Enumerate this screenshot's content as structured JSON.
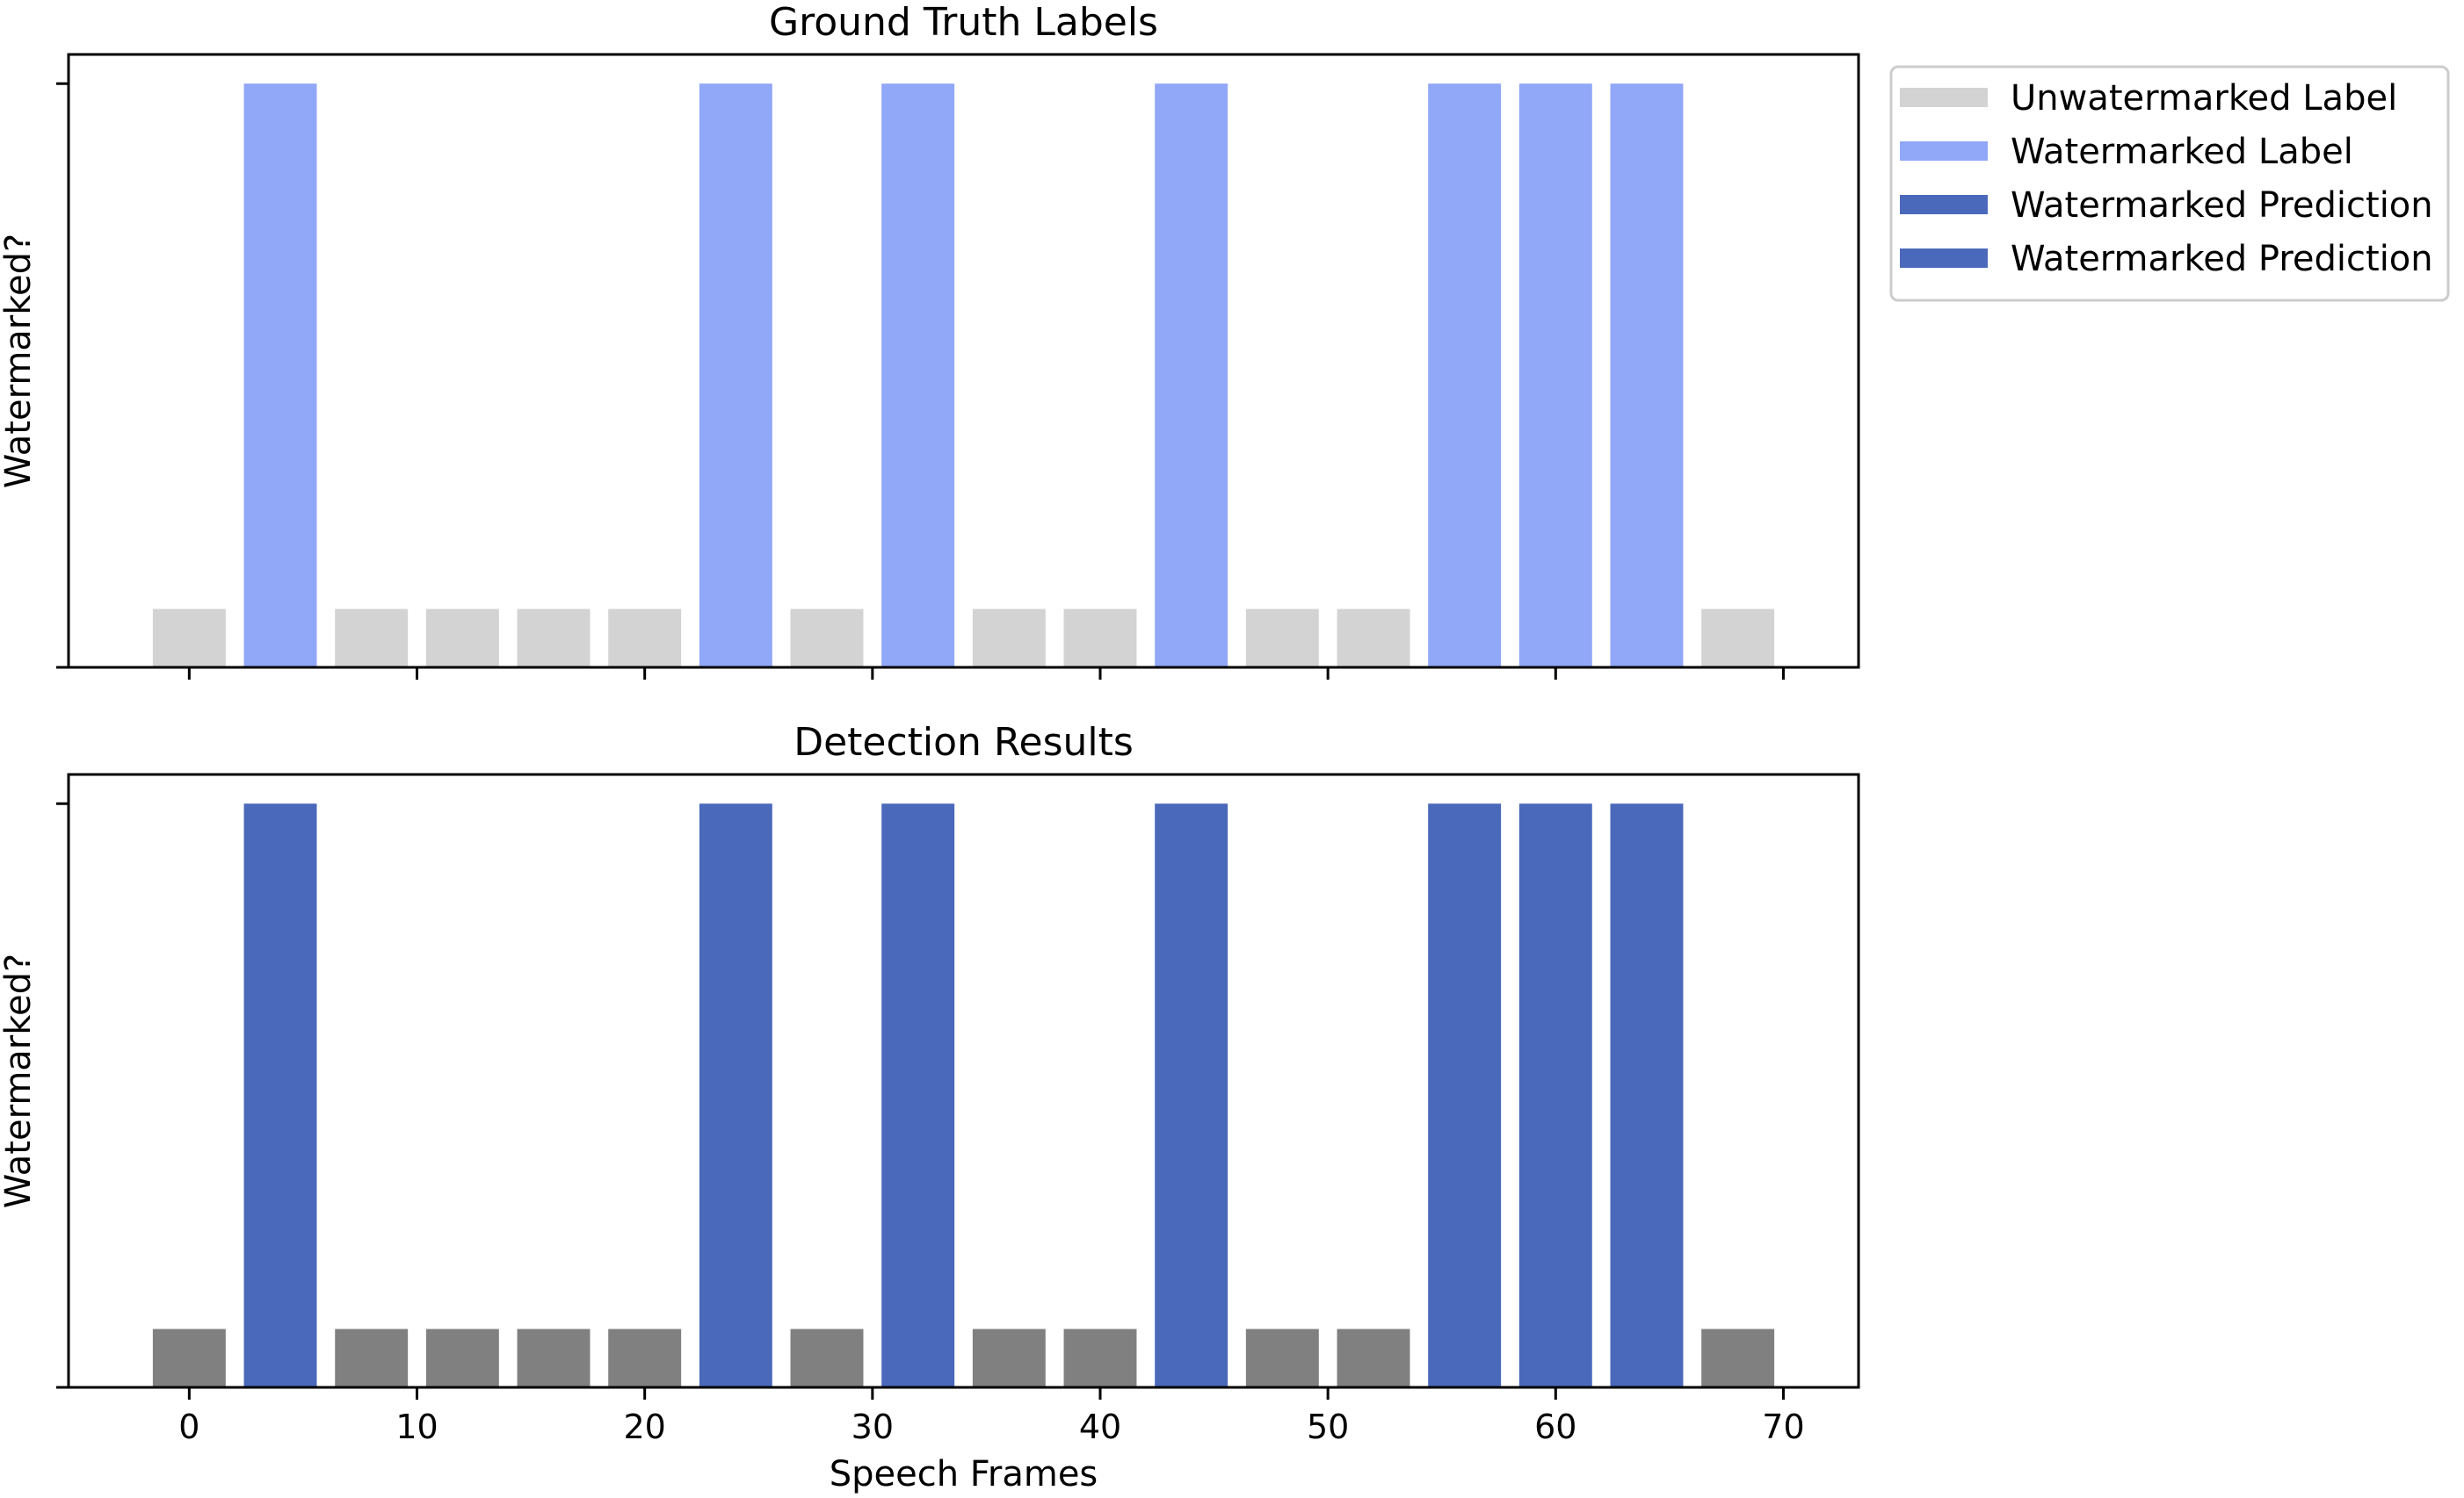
{
  "chart_data": [
    {
      "type": "bar",
      "title": "Ground Truth Labels",
      "ylabel": "Watermarked?",
      "xlabel": "",
      "x": [
        0,
        4,
        8,
        12,
        16,
        20,
        24,
        28,
        32,
        36,
        40,
        44,
        48,
        52,
        56,
        60,
        64,
        68
      ],
      "values": [
        0.1,
        1,
        0.1,
        0.1,
        0.1,
        0.1,
        1,
        0.1,
        1,
        0.1,
        0.1,
        1,
        0.1,
        0.1,
        1,
        1,
        1,
        0.1
      ],
      "colors": [
        "#d3d3d3",
        "#91a7f7",
        "#d3d3d3",
        "#d3d3d3",
        "#d3d3d3",
        "#d3d3d3",
        "#91a7f7",
        "#d3d3d3",
        "#91a7f7",
        "#d3d3d3",
        "#d3d3d3",
        "#91a7f7",
        "#d3d3d3",
        "#d3d3d3",
        "#91a7f7",
        "#91a7f7",
        "#91a7f7",
        "#d3d3d3"
      ],
      "bar_width": 3.2,
      "xlim": [
        -5.3,
        73.3
      ],
      "ylim": [
        0,
        1.05
      ],
      "x_ticks": [
        0,
        10,
        20,
        30,
        40,
        50,
        60,
        70
      ],
      "x_tick_labels_shown": false,
      "grid": false
    },
    {
      "type": "bar",
      "title": "Detection Results",
      "ylabel": "Watermarked?",
      "xlabel": "Speech Frames",
      "x": [
        0,
        4,
        8,
        12,
        16,
        20,
        24,
        28,
        32,
        36,
        40,
        44,
        48,
        52,
        56,
        60,
        64,
        68
      ],
      "values": [
        0.1,
        1,
        0.1,
        0.1,
        0.1,
        0.1,
        1,
        0.1,
        1,
        0.1,
        0.1,
        1,
        0.1,
        0.1,
        1,
        1,
        1,
        0.1
      ],
      "colors": [
        "#808080",
        "#4a69bb",
        "#808080",
        "#808080",
        "#808080",
        "#808080",
        "#4a69bb",
        "#808080",
        "#4a69bb",
        "#808080",
        "#808080",
        "#4a69bb",
        "#808080",
        "#808080",
        "#4a69bb",
        "#4a69bb",
        "#4a69bb",
        "#808080"
      ],
      "bar_width": 3.2,
      "xlim": [
        -5.3,
        73.3
      ],
      "ylim": [
        0,
        1.05
      ],
      "x_ticks": [
        0,
        10,
        20,
        30,
        40,
        50,
        60,
        70
      ],
      "x_tick_labels": [
        "0",
        "10",
        "20",
        "30",
        "40",
        "50",
        "60",
        "70"
      ],
      "x_tick_labels_shown": true,
      "grid": false
    }
  ],
  "legend": {
    "placement": "upper-right-outside",
    "entries": [
      {
        "label": "Unwatermarked Label",
        "color": "#d3d3d3"
      },
      {
        "label": "Watermarked Label",
        "color": "#91a7f7"
      },
      {
        "label": "Watermarked Prediction",
        "color": "#4a69bb"
      },
      {
        "label": "Watermarked Prediction",
        "color": "#4a69bb"
      }
    ]
  }
}
